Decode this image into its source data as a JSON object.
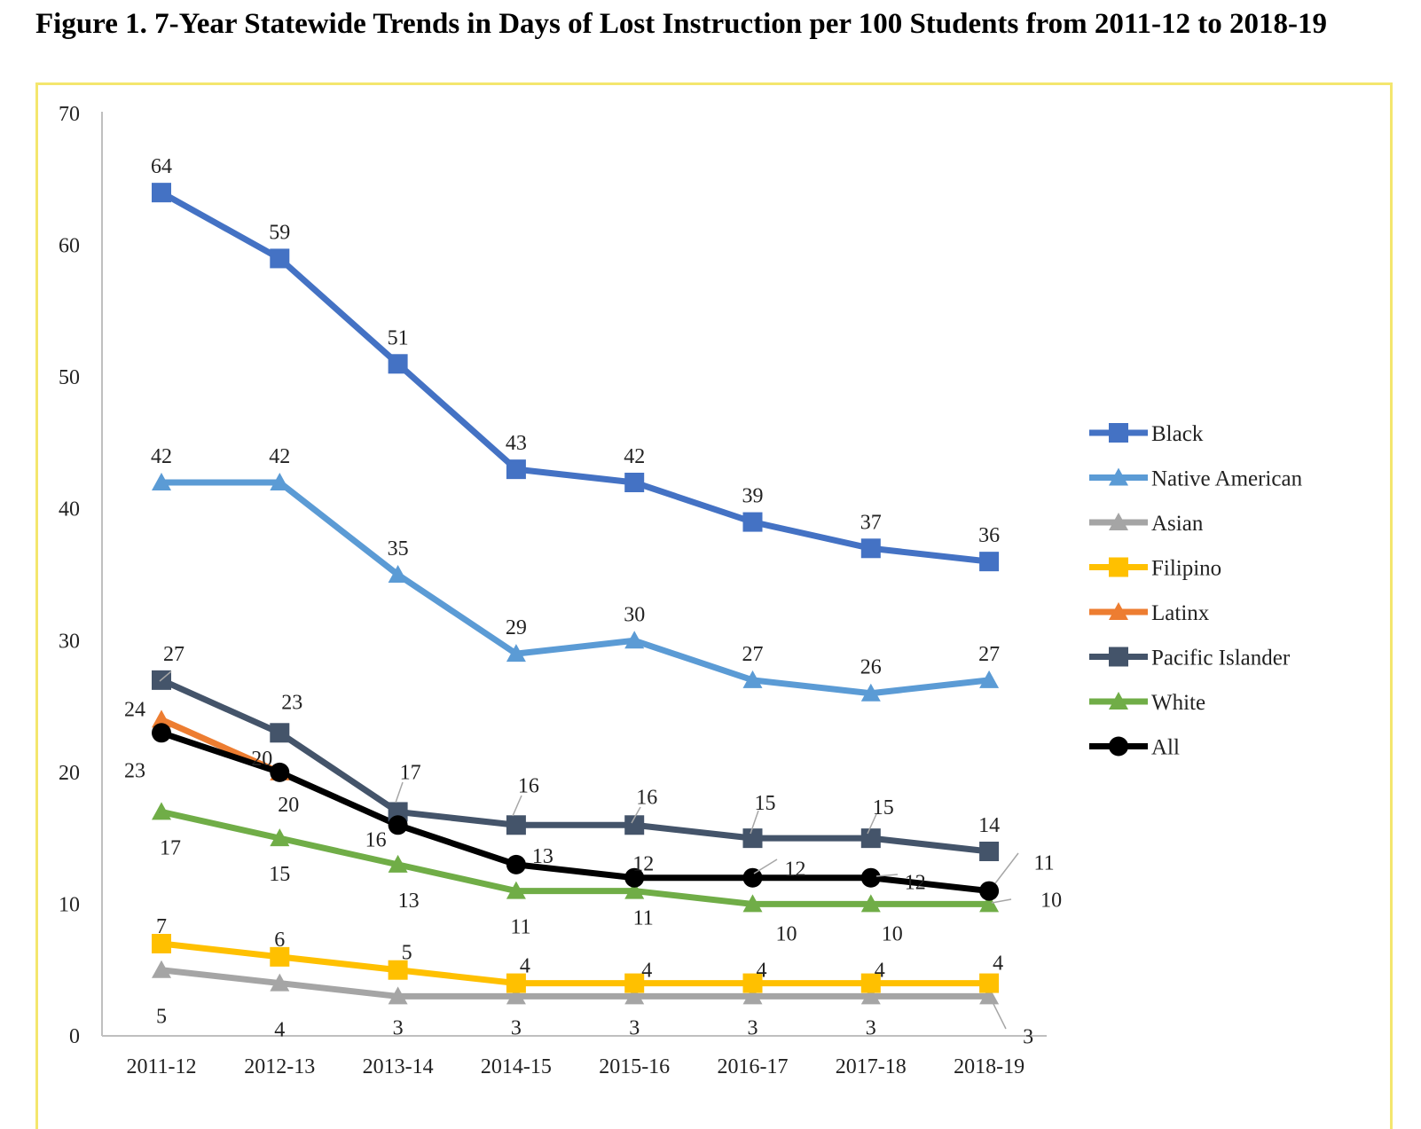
{
  "title": "Figure 1. 7-Year Statewide Trends in Days of Lost Instruction per 100 Students from 2011-12 to 2018-19",
  "chart_data": {
    "type": "line",
    "title": "Figure 1. 7-Year Statewide Trends in Days of Lost Instruction per 100 Students from 2011-12 to 2018-19",
    "xlabel": "",
    "ylabel": "",
    "categories": [
      "2011-12",
      "2012-13",
      "2013-14",
      "2014-15",
      "2015-16",
      "2016-17",
      "2017-18",
      "2018-19"
    ],
    "ylim": [
      0,
      70
    ],
    "yticks": [
      0,
      10,
      20,
      30,
      40,
      50,
      60,
      70
    ],
    "grid": false,
    "legend_position": "right",
    "series": [
      {
        "name": "Black",
        "color": "#4472c4",
        "marker": "square",
        "values": [
          64,
          59,
          51,
          43,
          42,
          39,
          37,
          36
        ]
      },
      {
        "name": "Native American",
        "color": "#5b9bd5",
        "marker": "triangle",
        "values": [
          42,
          42,
          35,
          29,
          30,
          27,
          26,
          27
        ]
      },
      {
        "name": "Asian",
        "color": "#a5a5a5",
        "marker": "triangle",
        "values": [
          5,
          4,
          3,
          3,
          3,
          3,
          3,
          3
        ]
      },
      {
        "name": "Filipino",
        "color": "#ffc000",
        "marker": "square",
        "values": [
          7,
          6,
          5,
          4,
          4,
          4,
          4,
          4
        ]
      },
      {
        "name": "Latinx",
        "color": "#ed7d31",
        "marker": "triangle",
        "values": [
          24,
          20,
          null,
          null,
          null,
          null,
          null,
          null
        ]
      },
      {
        "name": "Pacific Islander",
        "color": "#44546a",
        "marker": "square",
        "values": [
          27,
          23,
          17,
          16,
          16,
          15,
          15,
          14
        ]
      },
      {
        "name": "White",
        "color": "#70ad47",
        "marker": "triangle",
        "values": [
          17,
          15,
          13,
          11,
          11,
          10,
          10,
          10
        ]
      },
      {
        "name": "All",
        "color": "#000000",
        "marker": "circle",
        "values": [
          23,
          20,
          16,
          13,
          12,
          12,
          12,
          11
        ]
      }
    ]
  }
}
